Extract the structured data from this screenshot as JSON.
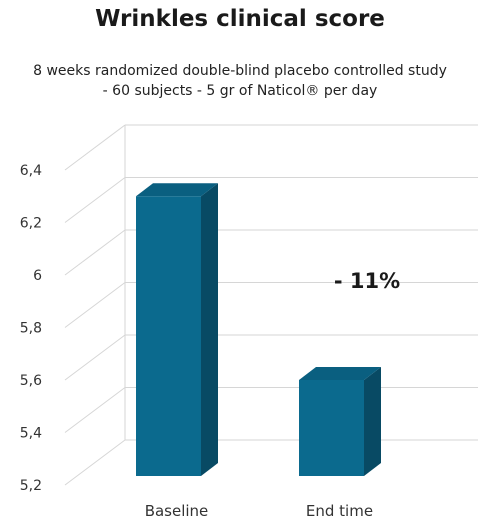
{
  "title": "Wrinkles clinical score",
  "subtitle_line1": "8 weeks randomized double-blind placebo controlled study",
  "subtitle_line2": "- 60 subjects - 5 gr of Naticol® per day",
  "chart_data": {
    "type": "bar",
    "title": "Wrinkles clinical score",
    "categories": [
      "Baseline",
      "End time"
    ],
    "values": [
      6.3,
      5.6
    ],
    "xlabel": "",
    "ylabel": "",
    "ylim": [
      5.2,
      6.4
    ],
    "y_ticks": [
      "5,2",
      "5,4",
      "5,6",
      "5,8",
      "6",
      "6,2",
      "6,4"
    ],
    "y_tick_values": [
      5.2,
      5.4,
      5.6,
      5.8,
      6.0,
      6.2,
      6.4
    ],
    "annotation": "- 11%",
    "style": "3d",
    "grid": true,
    "colors": {
      "bar_front": "#0b6a8e",
      "bar_side": "#084a64",
      "bar_top": "#0a5f80",
      "grid": "#d6d6d6"
    }
  }
}
